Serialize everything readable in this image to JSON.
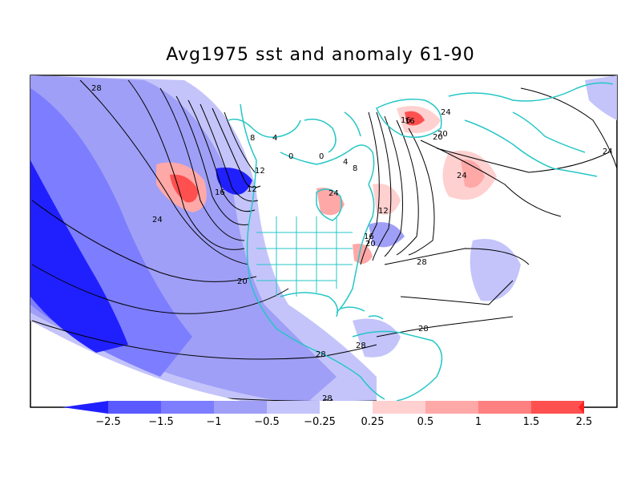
{
  "title": "Avg1975 sst and anomaly 61-90",
  "contour_labels": [
    "28",
    "24",
    "20",
    "16",
    "12",
    "8",
    "4",
    "0",
    "28",
    "24",
    "20",
    "16",
    "12",
    "8",
    "4",
    "0",
    "16",
    "24",
    "20",
    "24",
    "24",
    "12",
    "20",
    "16",
    "28",
    "28",
    "28",
    "28",
    "24"
  ],
  "colorbar": {
    "ticks": [
      "−2.5",
      "−1.5",
      "−1",
      "−0.5",
      "−0.25",
      "0.25",
      "0.5",
      "1",
      "1.5",
      "2.5"
    ],
    "colors": [
      "#2020ff",
      "#5a5aff",
      "#7d7dff",
      "#9f9ff7",
      "#c4c4fb",
      "#ffffff",
      "#ffd0d0",
      "#ffa8a8",
      "#ff8080",
      "#ff5050",
      "#ff2020"
    ]
  },
  "colors": {
    "land_outline": "#26c6c6",
    "neg_strong": "#2020ff",
    "neg_mid": "#7d7dff",
    "neg_light": "#9f9ff7",
    "neg_faint": "#c4c4fb",
    "pos_faint": "#ffd0d0",
    "pos_light": "#ffa8a8",
    "pos_strong": "#ff5050"
  }
}
